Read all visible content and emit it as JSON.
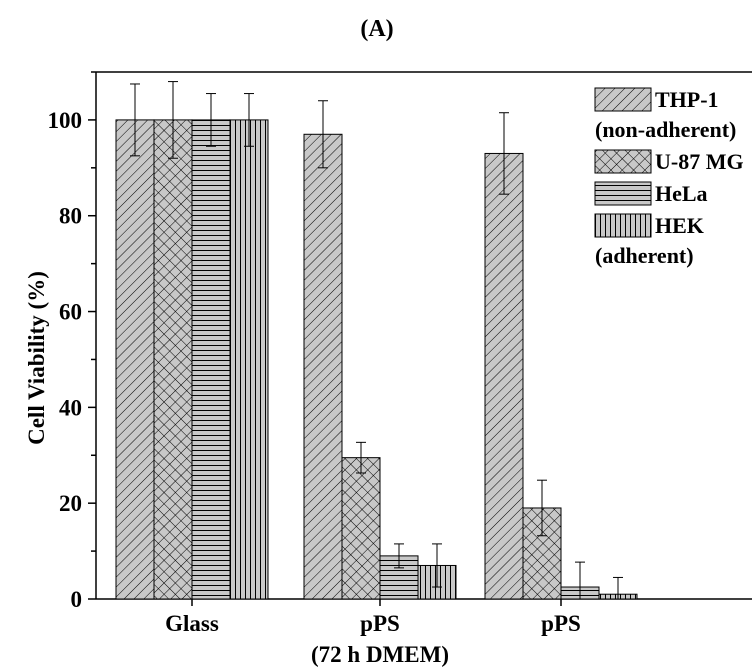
{
  "panel_label": "(A)",
  "chart_data": {
    "type": "bar",
    "title": "(A)",
    "ylabel": "Cell Viability (%)",
    "xlabel": "",
    "ylim": [
      0,
      110
    ],
    "yticks": [
      0,
      20,
      40,
      60,
      80,
      100
    ],
    "grid": false,
    "legend_position": "top-right",
    "categories": [
      "Glass",
      "pPS",
      "pPS"
    ],
    "category_sublabels": [
      "",
      "(72 h DMEM)",
      ""
    ],
    "series": [
      {
        "name": "THP-1",
        "pattern": "diagonal-hatch",
        "values": [
          100,
          97,
          93
        ],
        "errors": [
          7.5,
          7.0,
          8.5
        ]
      },
      {
        "name": "U-87 MG",
        "pattern": "cross-hatch",
        "values": [
          100,
          29.5,
          19
        ],
        "errors": [
          8,
          3.2,
          5.8
        ]
      },
      {
        "name": "HeLa",
        "pattern": "horizontal-lines",
        "values": [
          100,
          9,
          2.5
        ],
        "errors": [
          5.5,
          2.5,
          5.2
        ]
      },
      {
        "name": "HEK",
        "pattern": "vertical-lines",
        "values": [
          100,
          7,
          1
        ],
        "errors": [
          5.5,
          4.5,
          3.5
        ]
      }
    ],
    "legend_groups": [
      {
        "note": "(non-adherent)",
        "after": "THP-1"
      },
      {
        "note": "(adherent)",
        "after": "HEK"
      }
    ],
    "bar_fill_color": "#c8c8c8",
    "ink_color": "#000000"
  }
}
